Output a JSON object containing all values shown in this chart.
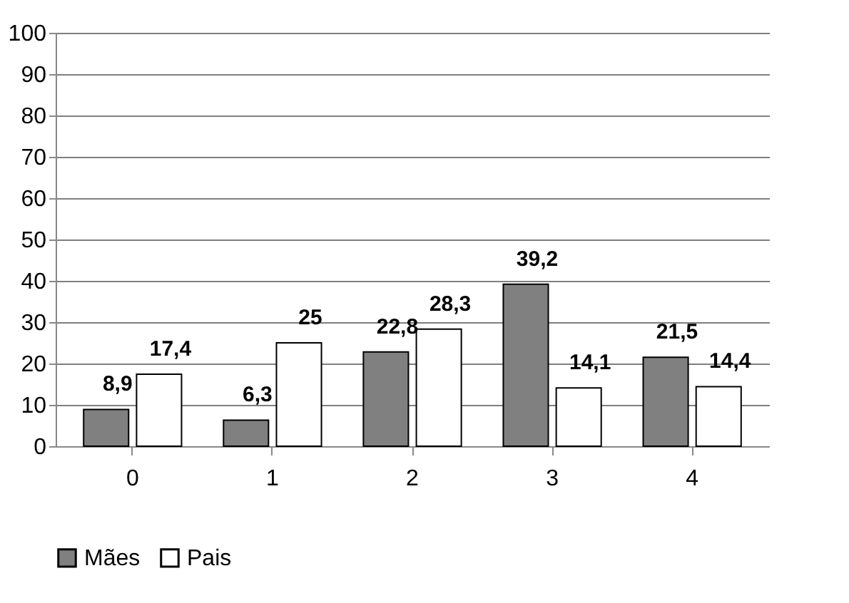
{
  "chart_data": {
    "type": "bar",
    "categories": [
      "0",
      "1",
      "2",
      "3",
      "4"
    ],
    "series": [
      {
        "name": "Mães",
        "color": "#808080",
        "values": [
          8.9,
          6.3,
          22.8,
          39.2,
          21.5
        ],
        "value_labels": [
          "8,9",
          "6,3",
          "22,8",
          "39,2",
          "21,5"
        ]
      },
      {
        "name": "Pais",
        "color": "#ffffff",
        "values": [
          17.4,
          25,
          28.3,
          14.1,
          14.4
        ],
        "value_labels": [
          "17,4",
          "25",
          "28,3",
          "14,1",
          "14,4"
        ]
      }
    ],
    "ylim": [
      0,
      100
    ],
    "yticks": [
      0,
      10,
      20,
      30,
      40,
      50,
      60,
      70,
      80,
      90,
      100
    ],
    "grid": "y",
    "legend": "bottom"
  }
}
